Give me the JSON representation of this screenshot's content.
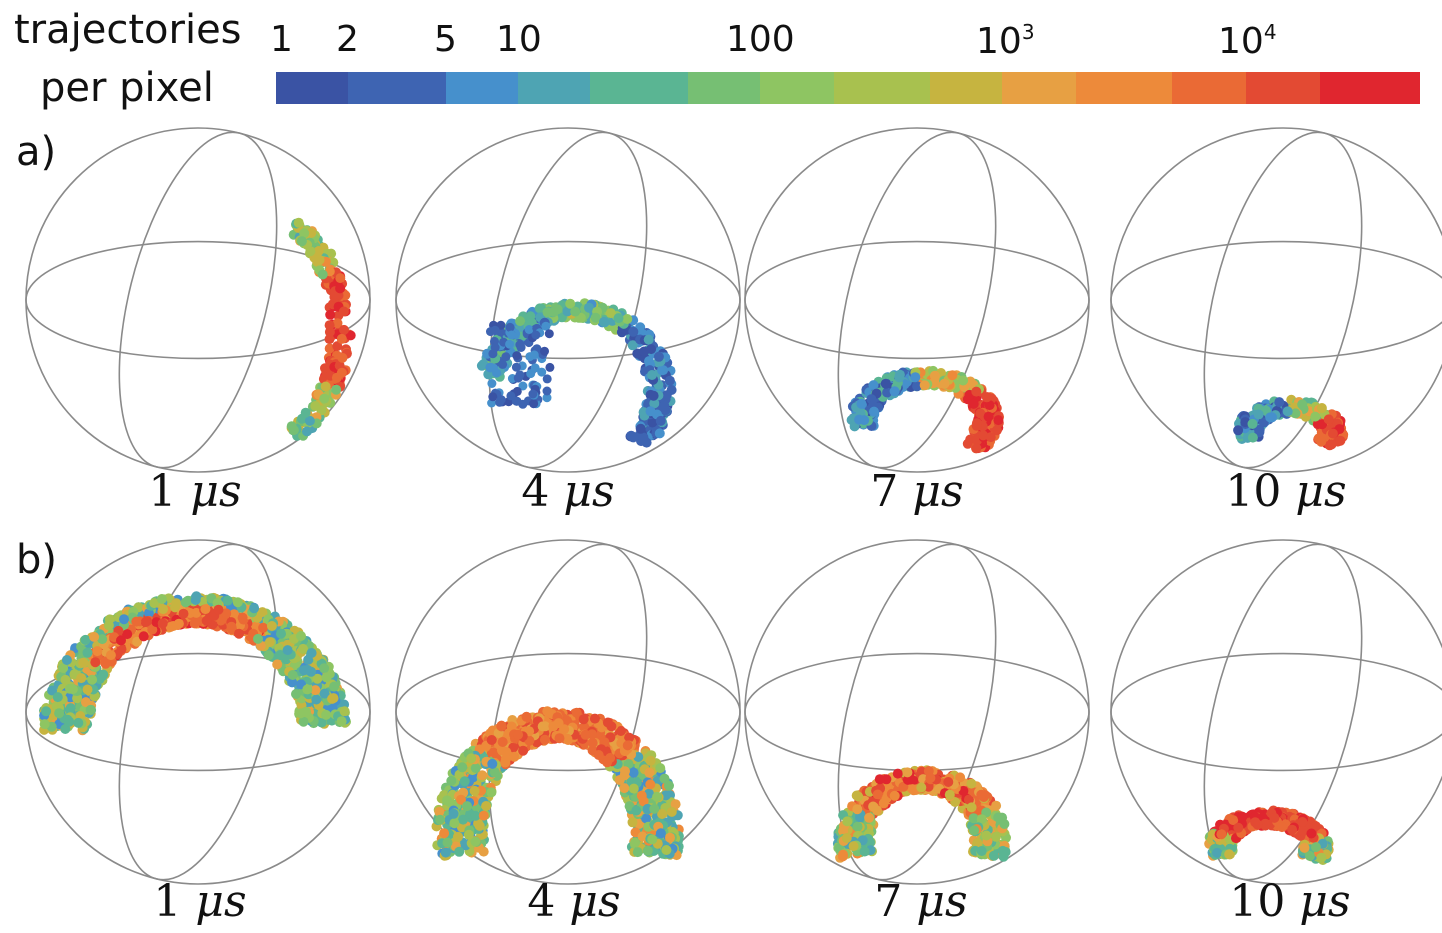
{
  "legend": {
    "title_line1": "trajectories",
    "title_line2": "per pixel",
    "colors": [
      "#3a53a4",
      "#3e64b2",
      "#4690cc",
      "#4ea4b3",
      "#5ab593",
      "#76bf73",
      "#8ec562",
      "#a8c14f",
      "#c6b440",
      "#e7a043",
      "#ed8a3a",
      "#ea6a35",
      "#e34a33",
      "#e0262f"
    ],
    "ticks": [
      {
        "main": "1",
        "sup": ""
      },
      {
        "main": "2",
        "sup": ""
      },
      {
        "main": "5",
        "sup": ""
      },
      {
        "main": "10",
        "sup": ""
      },
      {
        "main": "100",
        "sup": ""
      },
      {
        "main": "10",
        "sup": "3"
      },
      {
        "main": "10",
        "sup": "4"
      }
    ]
  },
  "rows": [
    {
      "label": "a)",
      "times": [
        {
          "value": "1",
          "unit": "μs"
        },
        {
          "value": "4",
          "unit": "μs"
        },
        {
          "value": "7",
          "unit": "μs"
        },
        {
          "value": "10",
          "unit": "μs"
        }
      ]
    },
    {
      "label": "b)",
      "times": [
        {
          "value": "1",
          "unit": "μs"
        },
        {
          "value": "4",
          "unit": "μs"
        },
        {
          "value": "7",
          "unit": "μs"
        },
        {
          "value": "10",
          "unit": "μs"
        }
      ]
    }
  ]
}
